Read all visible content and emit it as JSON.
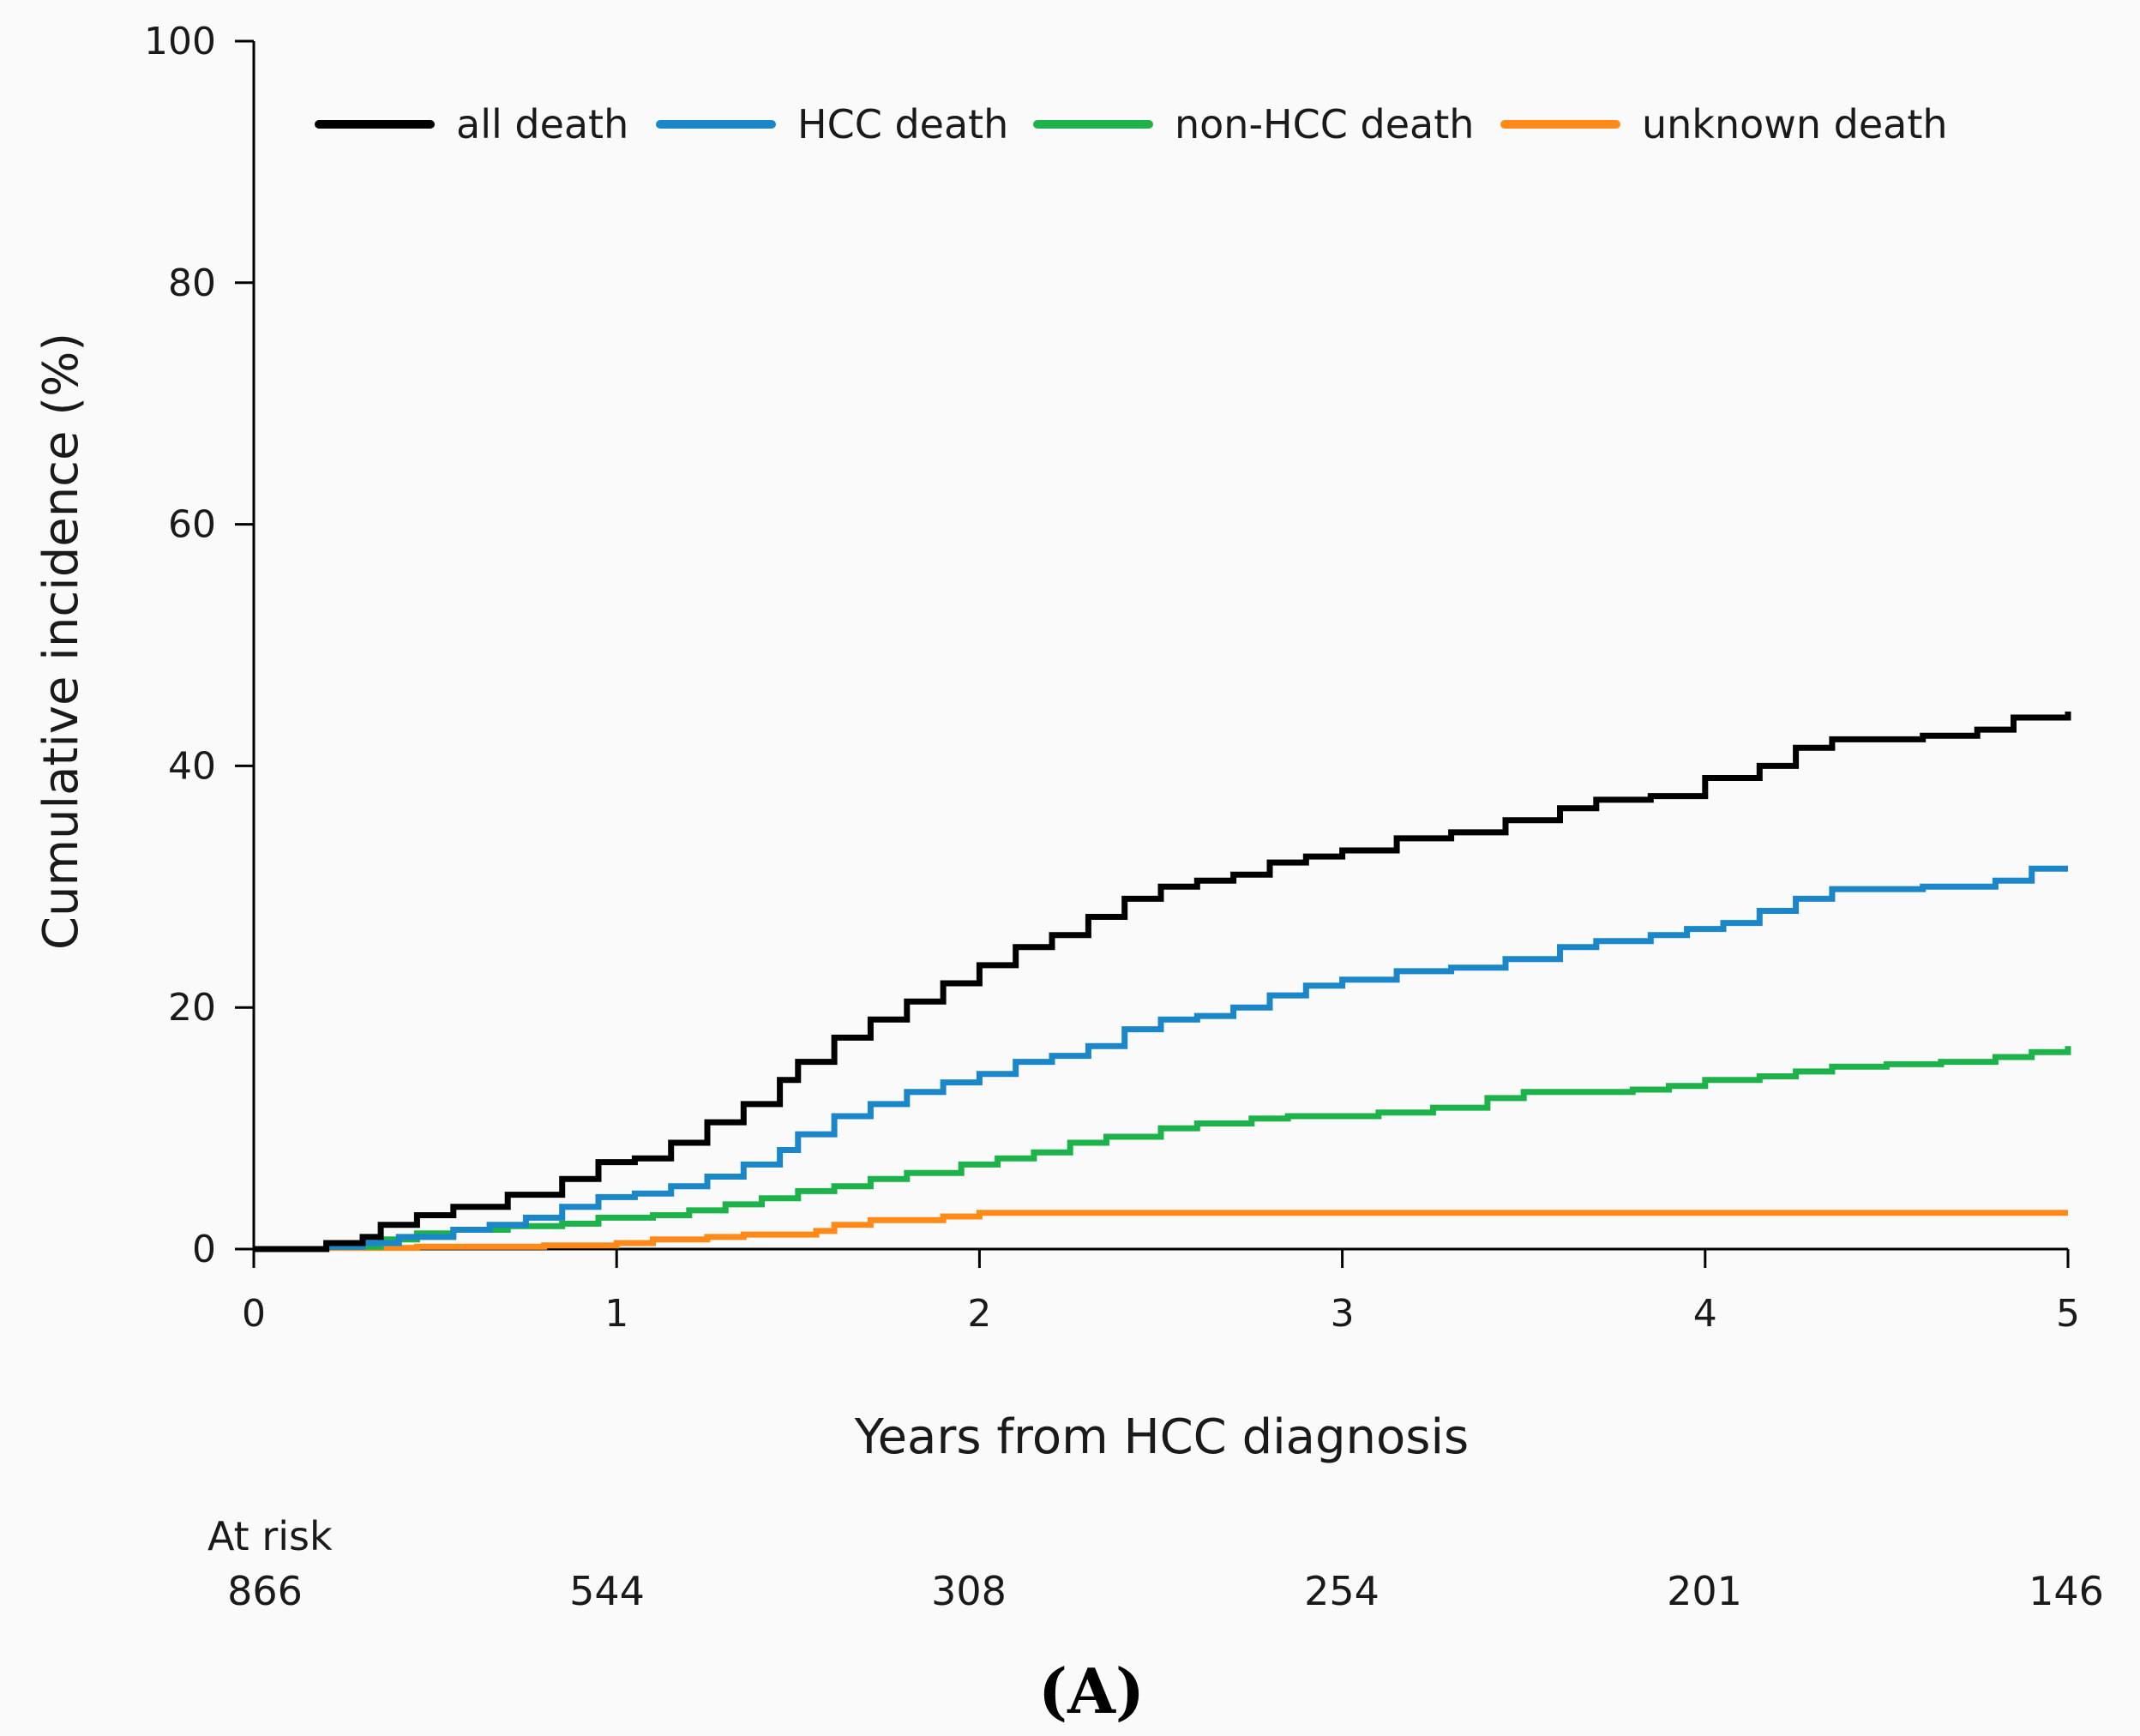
{
  "chart_data": {
    "type": "line",
    "title": "",
    "panel_label": "(A)",
    "xlabel": "Years from HCC diagnosis",
    "ylabel": "Cumulative incidence (%)",
    "xlim": [
      0,
      5
    ],
    "ylim": [
      0,
      100
    ],
    "x_ticks": [
      0,
      1,
      2,
      3,
      4,
      5
    ],
    "x_tick_labels": [
      "0",
      "1",
      "2",
      "3",
      "4",
      "5"
    ],
    "y_ticks": [
      0,
      20,
      40,
      60,
      80,
      100
    ],
    "y_tick_labels": [
      "0",
      "20",
      "40",
      "60",
      "80",
      "100"
    ],
    "grid": false,
    "legend_position": "top",
    "series": [
      {
        "name": "all death",
        "color": "#000000",
        "step": true,
        "points": [
          [
            0,
            0
          ],
          [
            0.1,
            0
          ],
          [
            0.2,
            0.5
          ],
          [
            0.3,
            1
          ],
          [
            0.35,
            2
          ],
          [
            0.45,
            2.8
          ],
          [
            0.55,
            3.5
          ],
          [
            0.7,
            4.5
          ],
          [
            0.85,
            5.8
          ],
          [
            0.95,
            7.2
          ],
          [
            1.05,
            7.5
          ],
          [
            1.15,
            8.8
          ],
          [
            1.25,
            10.5
          ],
          [
            1.35,
            12
          ],
          [
            1.45,
            14
          ],
          [
            1.5,
            15.5
          ],
          [
            1.6,
            17.5
          ],
          [
            1.7,
            19
          ],
          [
            1.8,
            20.5
          ],
          [
            1.9,
            22
          ],
          [
            2,
            23.5
          ],
          [
            2.1,
            25
          ],
          [
            2.2,
            26
          ],
          [
            2.3,
            27.5
          ],
          [
            2.4,
            29
          ],
          [
            2.5,
            30
          ],
          [
            2.6,
            30.5
          ],
          [
            2.7,
            31
          ],
          [
            2.8,
            32
          ],
          [
            2.9,
            32.5
          ],
          [
            3,
            33
          ],
          [
            3.15,
            34
          ],
          [
            3.3,
            34.5
          ],
          [
            3.45,
            35.5
          ],
          [
            3.6,
            36.5
          ],
          [
            3.7,
            37.2
          ],
          [
            3.85,
            37.5
          ],
          [
            4,
            39
          ],
          [
            4.15,
            40
          ],
          [
            4.25,
            41.5
          ],
          [
            4.35,
            42.2
          ],
          [
            4.6,
            42.5
          ],
          [
            4.75,
            43
          ],
          [
            4.85,
            44
          ],
          [
            5,
            44.5
          ]
        ]
      },
      {
        "name": "HCC death",
        "color": "#1b86c8",
        "step": true,
        "points": [
          [
            0,
            0
          ],
          [
            0.2,
            0.2
          ],
          [
            0.3,
            0.5
          ],
          [
            0.4,
            1
          ],
          [
            0.55,
            1.6
          ],
          [
            0.65,
            2
          ],
          [
            0.75,
            2.6
          ],
          [
            0.85,
            3.5
          ],
          [
            0.95,
            4.3
          ],
          [
            1.05,
            4.6
          ],
          [
            1.15,
            5.2
          ],
          [
            1.25,
            6
          ],
          [
            1.35,
            7
          ],
          [
            1.45,
            8.2
          ],
          [
            1.5,
            9.5
          ],
          [
            1.6,
            11
          ],
          [
            1.7,
            12
          ],
          [
            1.8,
            13
          ],
          [
            1.9,
            13.8
          ],
          [
            2,
            14.5
          ],
          [
            2.1,
            15.5
          ],
          [
            2.2,
            16
          ],
          [
            2.3,
            16.8
          ],
          [
            2.4,
            18.2
          ],
          [
            2.5,
            19
          ],
          [
            2.6,
            19.3
          ],
          [
            2.7,
            20
          ],
          [
            2.8,
            21
          ],
          [
            2.9,
            21.8
          ],
          [
            3,
            22.3
          ],
          [
            3.15,
            23
          ],
          [
            3.3,
            23.3
          ],
          [
            3.45,
            24
          ],
          [
            3.6,
            25
          ],
          [
            3.7,
            25.5
          ],
          [
            3.85,
            26
          ],
          [
            3.95,
            26.5
          ],
          [
            4.05,
            27
          ],
          [
            4.15,
            28
          ],
          [
            4.25,
            29
          ],
          [
            4.35,
            29.8
          ],
          [
            4.6,
            30
          ],
          [
            4.8,
            30.5
          ],
          [
            4.9,
            31.5
          ],
          [
            5,
            31.5
          ]
        ]
      },
      {
        "name": "non-HCC death",
        "color": "#1db34a",
        "step": true,
        "points": [
          [
            0,
            0
          ],
          [
            0.2,
            0.2
          ],
          [
            0.35,
            0.8
          ],
          [
            0.45,
            1.3
          ],
          [
            0.55,
            1.6
          ],
          [
            0.7,
            1.9
          ],
          [
            0.85,
            2.1
          ],
          [
            0.95,
            2.6
          ],
          [
            1.1,
            2.8
          ],
          [
            1.2,
            3.2
          ],
          [
            1.3,
            3.7
          ],
          [
            1.4,
            4.2
          ],
          [
            1.5,
            4.8
          ],
          [
            1.6,
            5.2
          ],
          [
            1.7,
            5.8
          ],
          [
            1.8,
            6.3
          ],
          [
            1.95,
            7
          ],
          [
            2.05,
            7.5
          ],
          [
            2.15,
            8
          ],
          [
            2.25,
            8.8
          ],
          [
            2.35,
            9.3
          ],
          [
            2.5,
            10
          ],
          [
            2.6,
            10.4
          ],
          [
            2.75,
            10.8
          ],
          [
            2.85,
            11
          ],
          [
            3.1,
            11.3
          ],
          [
            3.25,
            11.7
          ],
          [
            3.4,
            12.5
          ],
          [
            3.5,
            13
          ],
          [
            3.8,
            13.2
          ],
          [
            3.9,
            13.5
          ],
          [
            4,
            14
          ],
          [
            4.15,
            14.3
          ],
          [
            4.25,
            14.7
          ],
          [
            4.35,
            15.1
          ],
          [
            4.5,
            15.3
          ],
          [
            4.65,
            15.5
          ],
          [
            4.8,
            15.9
          ],
          [
            4.9,
            16.3
          ],
          [
            5,
            16.8
          ]
        ]
      },
      {
        "name": "unknown death",
        "color": "#ff8a1a",
        "step": true,
        "points": [
          [
            0,
            0
          ],
          [
            0.2,
            0.1
          ],
          [
            0.45,
            0.2
          ],
          [
            0.8,
            0.3
          ],
          [
            1,
            0.5
          ],
          [
            1.1,
            0.8
          ],
          [
            1.25,
            1
          ],
          [
            1.35,
            1.2
          ],
          [
            1.55,
            1.5
          ],
          [
            1.6,
            2
          ],
          [
            1.7,
            2.4
          ],
          [
            1.9,
            2.7
          ],
          [
            2,
            3
          ],
          [
            5,
            3
          ]
        ]
      }
    ],
    "at_risk": {
      "label": "At risk",
      "x": [
        0,
        1,
        2,
        3,
        4,
        5
      ],
      "values": [
        "866",
        "544",
        "308",
        "254",
        "201",
        "146"
      ]
    }
  }
}
